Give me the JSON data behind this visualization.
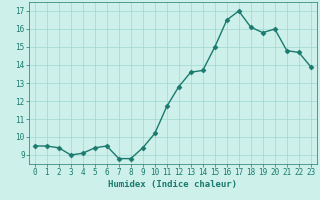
{
  "x": [
    0,
    1,
    2,
    3,
    4,
    5,
    6,
    7,
    8,
    9,
    10,
    11,
    12,
    13,
    14,
    15,
    16,
    17,
    18,
    19,
    20,
    21,
    22,
    23
  ],
  "y": [
    9.5,
    9.5,
    9.4,
    9.0,
    9.1,
    9.4,
    9.5,
    8.8,
    8.8,
    9.4,
    10.2,
    11.7,
    12.8,
    13.6,
    13.7,
    15.0,
    16.5,
    17.0,
    16.1,
    15.8,
    16.0,
    14.8,
    14.7,
    13.9
  ],
  "line_color": "#1a7a6e",
  "marker": "D",
  "marker_size": 2.5,
  "bg_color": "#cef0ea",
  "grid_color": "#9dd8d0",
  "xlabel": "Humidex (Indice chaleur)",
  "ylabel": "",
  "xlim": [
    -0.5,
    23.5
  ],
  "ylim": [
    8.5,
    17.5
  ],
  "yticks": [
    9,
    10,
    11,
    12,
    13,
    14,
    15,
    16,
    17
  ],
  "xticks": [
    0,
    1,
    2,
    3,
    4,
    5,
    6,
    7,
    8,
    9,
    10,
    11,
    12,
    13,
    14,
    15,
    16,
    17,
    18,
    19,
    20,
    21,
    22,
    23
  ],
  "xlabel_fontsize": 6.5,
  "tick_fontsize": 5.5,
  "tick_color": "#1a7a6e",
  "axis_color": "#1a7a6e",
  "linewidth": 1.0
}
